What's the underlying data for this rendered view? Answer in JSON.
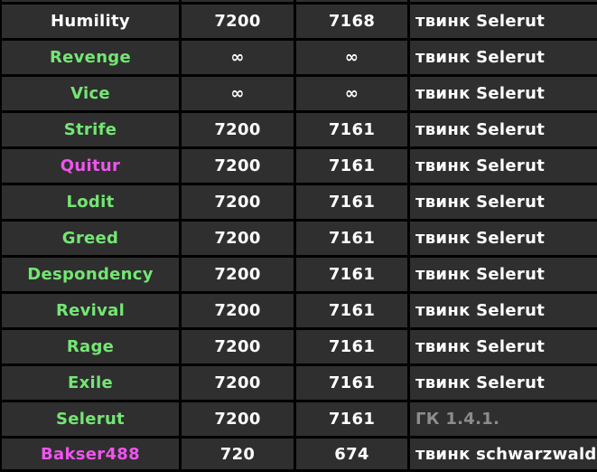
{
  "colors": {
    "cell_background": "#2f2f2f",
    "grid_border": "#000000",
    "white": "#ffffff",
    "green": "#74e674",
    "magenta": "#ee55ee",
    "gray": "#8c8c8c"
  },
  "rows": [
    {
      "name": "Humility",
      "name_color": "#ffffff",
      "col2": "7200",
      "col3": "7168",
      "note": "твинк Selerut",
      "note_color": "#ffffff"
    },
    {
      "name": "Revenge",
      "name_color": "#74e674",
      "col2": "∞",
      "col3": "∞",
      "note": "твинк Selerut",
      "note_color": "#ffffff"
    },
    {
      "name": "Vice",
      "name_color": "#74e674",
      "col2": "∞",
      "col3": "∞",
      "note": "твинк Selerut",
      "note_color": "#ffffff"
    },
    {
      "name": "Strife",
      "name_color": "#74e674",
      "col2": "7200",
      "col3": "7161",
      "note": "твинк Selerut",
      "note_color": "#ffffff"
    },
    {
      "name": "Quitur",
      "name_color": "#ee55ee",
      "col2": "7200",
      "col3": "7161",
      "note": "твинк Selerut",
      "note_color": "#ffffff"
    },
    {
      "name": "Lodit",
      "name_color": "#74e674",
      "col2": "7200",
      "col3": "7161",
      "note": "твинк Selerut",
      "note_color": "#ffffff"
    },
    {
      "name": "Greed",
      "name_color": "#74e674",
      "col2": "7200",
      "col3": "7161",
      "note": "твинк Selerut",
      "note_color": "#ffffff"
    },
    {
      "name": "Despondency",
      "name_color": "#74e674",
      "col2": "7200",
      "col3": "7161",
      "note": "твинк Selerut",
      "note_color": "#ffffff"
    },
    {
      "name": "Revival",
      "name_color": "#74e674",
      "col2": "7200",
      "col3": "7161",
      "note": "твинк Selerut",
      "note_color": "#ffffff"
    },
    {
      "name": "Rage",
      "name_color": "#74e674",
      "col2": "7200",
      "col3": "7161",
      "note": "твинк Selerut",
      "note_color": "#ffffff"
    },
    {
      "name": "Exile",
      "name_color": "#74e674",
      "col2": "7200",
      "col3": "7161",
      "note": "твинк Selerut",
      "note_color": "#ffffff"
    },
    {
      "name": "Selerut",
      "name_color": "#74e674",
      "col2": "7200",
      "col3": "7161",
      "note": "ГК 1.4.1.",
      "note_color": "#8c8c8c"
    },
    {
      "name": "Bakser488",
      "name_color": "#ee55ee",
      "col2": "720",
      "col3": "674",
      "note": "твинк schwarzwald",
      "note_color": "#ffffff"
    }
  ]
}
